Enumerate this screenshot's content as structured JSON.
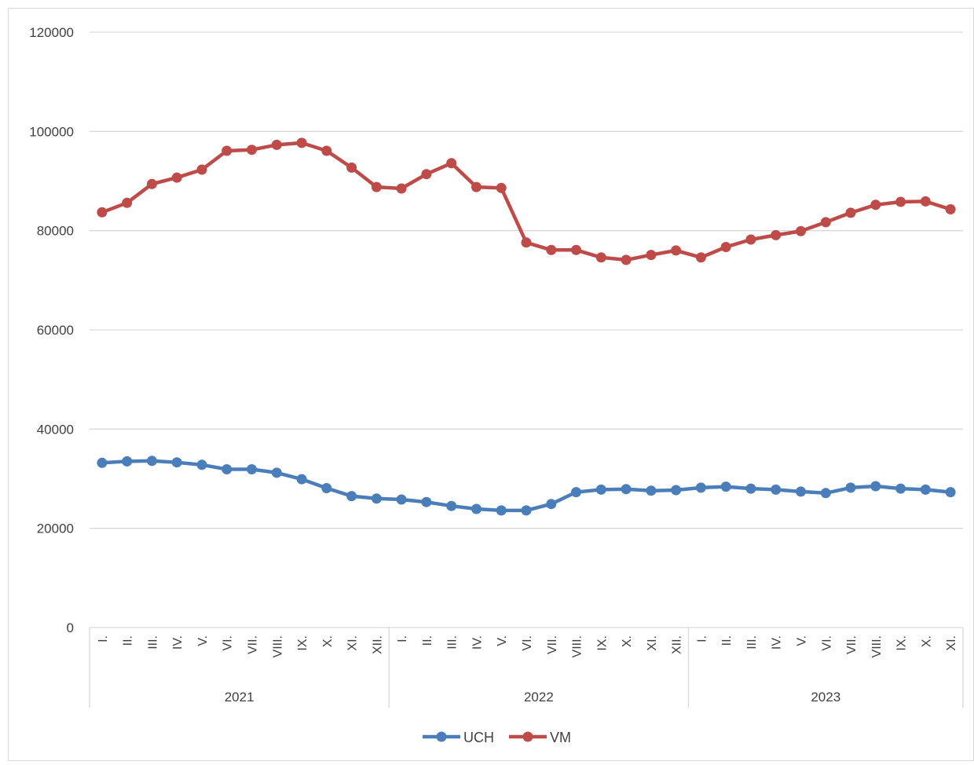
{
  "chart_data": {
    "type": "line",
    "title": "",
    "xlabel": "",
    "ylabel": "",
    "ylim": [
      0,
      120000
    ],
    "yticks": [
      "0",
      "20000",
      "40000",
      "60000",
      "80000",
      "100000",
      "120000"
    ],
    "grid": true,
    "legend_position": "bottom",
    "month_labels": [
      "I.",
      "II.",
      "III.",
      "IV.",
      "V.",
      "VI.",
      "VII.",
      "VIII.",
      "IX.",
      "X.",
      "XI.",
      "XII.",
      "I.",
      "II.",
      "III.",
      "IV.",
      "V.",
      "VI.",
      "VII.",
      "VIII.",
      "IX.",
      "X.",
      "XI.",
      "XII.",
      "I.",
      "II.",
      "III.",
      "IV.",
      "V.",
      "VI.",
      "VII.",
      "VIII.",
      "IX.",
      "X.",
      "XI."
    ],
    "years": [
      {
        "label": "2021",
        "months": 12
      },
      {
        "label": "2022",
        "months": 12
      },
      {
        "label": "2023",
        "months": 11
      }
    ],
    "series": [
      {
        "name": "UCH",
        "color": "#4A7EBB",
        "values": [
          33200,
          33500,
          33600,
          33300,
          32800,
          31900,
          31900,
          31200,
          29900,
          28100,
          26500,
          26000,
          25800,
          25300,
          24500,
          23900,
          23600,
          23600,
          24900,
          27300,
          27800,
          27900,
          27600,
          27700,
          28200,
          28400,
          28000,
          27800,
          27400,
          27100,
          28200,
          28500,
          28000,
          27800,
          27300
        ]
      },
      {
        "name": "VM",
        "color": "#BE4B48",
        "values": [
          83700,
          85600,
          89400,
          90700,
          92300,
          96100,
          96300,
          97300,
          97700,
          96100,
          92700,
          88800,
          88500,
          91400,
          93600,
          88800,
          88600,
          77600,
          76100,
          76100,
          74600,
          74100,
          75100,
          76000,
          74600,
          76700,
          78200,
          79100,
          79900,
          81700,
          83600,
          85200,
          85800,
          85900,
          84300
        ]
      }
    ]
  }
}
